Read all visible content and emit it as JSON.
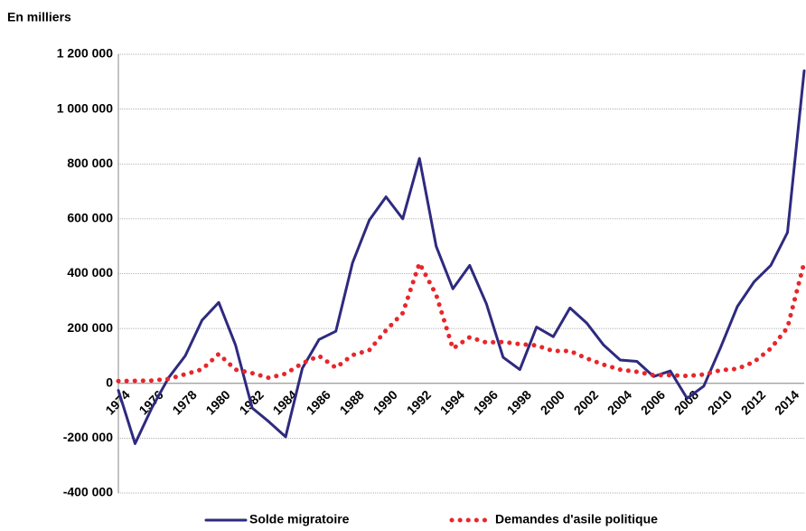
{
  "chart_data": {
    "type": "line",
    "y_label": "En milliers",
    "categories": [
      "1974",
      null,
      "1976",
      null,
      "1978",
      null,
      "1980",
      null,
      "1982",
      null,
      "1984",
      null,
      "1986",
      null,
      "1988",
      null,
      "1990",
      null,
      "1992",
      null,
      "1994",
      null,
      "1996",
      null,
      "1998",
      null,
      "2000",
      null,
      "2002",
      null,
      "2004",
      null,
      "2006",
      null,
      "2008",
      null,
      "2010",
      null,
      "2012",
      null,
      "2014",
      null
    ],
    "series": [
      {
        "name": "Solde migratoire",
        "color": "#2e2a7f",
        "style": "solid",
        "values": [
          -26000,
          -220000,
          -90000,
          20000,
          100000,
          230000,
          295000,
          140000,
          -90000,
          -140000,
          -195000,
          55000,
          160000,
          190000,
          440000,
          595000,
          680000,
          600000,
          820000,
          500000,
          345000,
          430000,
          290000,
          95000,
          50000,
          205000,
          170000,
          275000,
          220000,
          140000,
          85000,
          80000,
          25000,
          45000,
          -55000,
          -10000,
          130000,
          280000,
          370000,
          430000,
          550000,
          1140000
        ]
      },
      {
        "name": "Demandes d'asile politique",
        "color": "#e8262b",
        "style": "dotted",
        "values": [
          8000,
          9000,
          10000,
          16000,
          33000,
          51000,
          107000,
          50000,
          37000,
          20000,
          35000,
          73000,
          100000,
          57000,
          103000,
          121000,
          193000,
          256000,
          438000,
          323000,
          127000,
          168000,
          149000,
          151000,
          143000,
          138000,
          118000,
          118000,
          91000,
          68000,
          50000,
          42000,
          30000,
          30000,
          27000,
          32000,
          48000,
          53000,
          78000,
          127000,
          203000,
          441000
        ]
      }
    ],
    "ylim": [
      -400000,
      1200000
    ],
    "yticks": [
      {
        "value": -400000,
        "label": "-400 000"
      },
      {
        "value": -200000,
        "label": "-200 000"
      },
      0,
      {
        "value": 200000,
        "label": "200 000"
      },
      {
        "value": 400000,
        "label": "400 000"
      },
      {
        "value": 600000,
        "label": "600 000"
      },
      {
        "value": 800000,
        "label": "800 000"
      },
      {
        "value": 1000000,
        "label": "1 000 000"
      },
      {
        "value": 1200000,
        "label": "1 200 000"
      }
    ],
    "grid": true,
    "legend": "bottom"
  }
}
